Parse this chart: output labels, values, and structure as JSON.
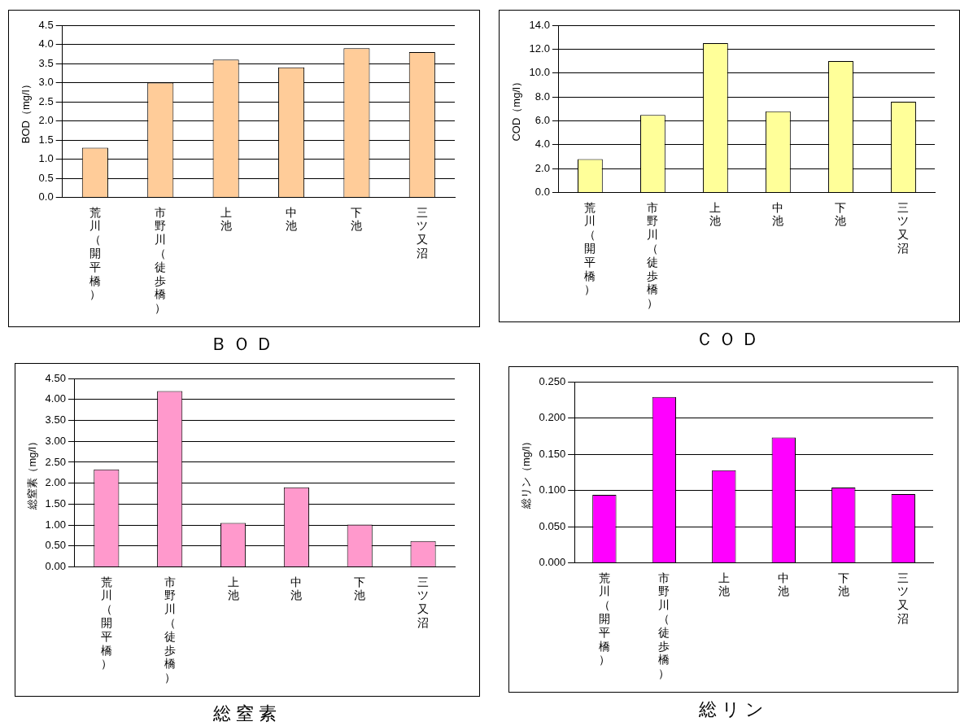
{
  "chart_data": [
    {
      "type": "bar",
      "title": "ＢＯＤ",
      "ylabel": "BOD（mg/l）",
      "categories": [
        "荒川（開平橋）",
        "市野川（徒歩橋）",
        "上池",
        "中池",
        "下池",
        "三ツ又沼"
      ],
      "values": [
        1.3,
        3.0,
        3.6,
        3.4,
        3.9,
        3.8
      ],
      "color": "#ffcc99",
      "ylim": [
        0,
        4.5
      ],
      "yticks": [
        {
          "value": 0,
          "label": "0.0"
        },
        0.5,
        {
          "value": 1,
          "label": "1.0"
        },
        1.5,
        {
          "value": 2,
          "label": "2.0"
        },
        2.5,
        {
          "value": 3,
          "label": "3.0"
        },
        3.5,
        {
          "value": 4,
          "label": "4.0"
        },
        4.5
      ],
      "grid": "y"
    },
    {
      "type": "bar",
      "title": "ＣＯＤ",
      "ylabel": "COD（mg/l）",
      "categories": [
        "荒川（開平橋）",
        "市野川（徒歩橋）",
        "上池",
        "中池",
        "下池",
        "三ツ又沼"
      ],
      "values": [
        2.8,
        6.5,
        12.5,
        6.8,
        11.0,
        7.6
      ],
      "color": "#ffff99",
      "ylim": [
        0,
        14
      ],
      "yticks": [
        {
          "value": 0,
          "label": "0.0"
        },
        {
          "value": 2,
          "label": "2.0"
        },
        {
          "value": 4,
          "label": "4.0"
        },
        {
          "value": 6,
          "label": "6.0"
        },
        {
          "value": 8,
          "label": "8.0"
        },
        {
          "value": 10,
          "label": "10.0"
        },
        {
          "value": 12,
          "label": "12.0"
        },
        {
          "value": 14,
          "label": "14.0"
        }
      ],
      "grid": "y"
    },
    {
      "type": "bar",
      "title": "総窒素",
      "ylabel": "総窒素（mg/l）",
      "categories": [
        "荒川（開平橋）",
        "市野川（徒歩橋）",
        "上池",
        "中池",
        "下池",
        "三ツ又沼"
      ],
      "values": [
        2.33,
        4.2,
        1.05,
        1.9,
        1.01,
        0.62
      ],
      "color": "#ff99cc",
      "ylim": [
        0,
        4.5
      ],
      "yticks": [
        {
          "value": 0,
          "label": "0.00"
        },
        {
          "value": 0.5,
          "label": "0.50"
        },
        {
          "value": 1,
          "label": "1.00"
        },
        {
          "value": 1.5,
          "label": "1.50"
        },
        {
          "value": 2,
          "label": "2.00"
        },
        {
          "value": 2.5,
          "label": "2.50"
        },
        {
          "value": 3,
          "label": "3.00"
        },
        {
          "value": 3.5,
          "label": "3.50"
        },
        {
          "value": 4,
          "label": "4.00"
        },
        {
          "value": 4.5,
          "label": "4.50"
        }
      ],
      "grid": "y"
    },
    {
      "type": "bar",
      "title": "総リン",
      "ylabel": "総リン（mg/l）",
      "categories": [
        "荒川（開平橋）",
        "市野川（徒歩橋）",
        "上池",
        "中池",
        "下池",
        "三ツ又沼"
      ],
      "values": [
        0.094,
        0.229,
        0.128,
        0.173,
        0.104,
        0.095
      ],
      "color": "#ff00ff",
      "ylim": [
        0,
        0.25
      ],
      "yticks": [
        {
          "value": 0,
          "label": "0.000"
        },
        {
          "value": 0.05,
          "label": "0.050"
        },
        {
          "value": 0.1,
          "label": "0.100"
        },
        {
          "value": 0.15,
          "label": "0.150"
        },
        {
          "value": 0.2,
          "label": "0.200"
        },
        {
          "value": 0.25,
          "label": "0.250"
        }
      ],
      "grid": "y"
    }
  ]
}
